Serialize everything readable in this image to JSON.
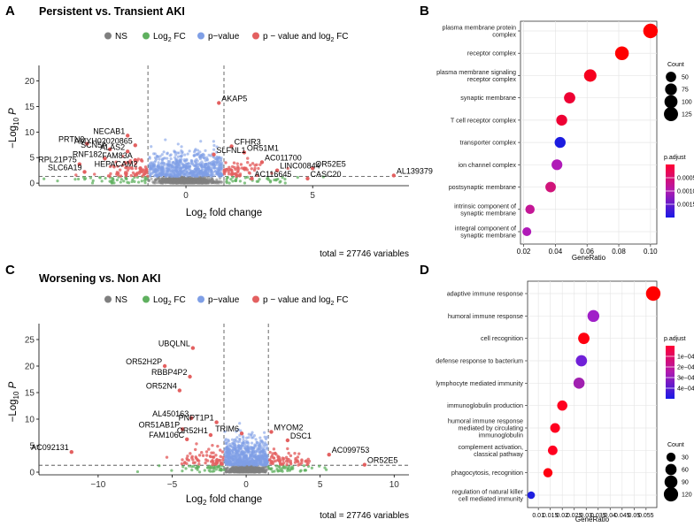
{
  "panels": [
    {
      "letter": "A",
      "title": "Persistent vs. Transient AKI",
      "legend": [
        {
          "label": "NS",
          "color": "#7f7f7f"
        },
        {
          "label": "Log",
          "sub": "2",
          "suffix": " FC",
          "color": "#5fb05f"
        },
        {
          "label": "p−value",
          "color": "#7f9fe6"
        },
        {
          "label": "p − value and log",
          "sub": "2",
          "suffix": " FC",
          "color": "#e36060"
        }
      ],
      "x_ticks": [
        0,
        5
      ],
      "y_ticks": [
        0,
        5,
        10,
        15,
        20
      ],
      "xlim": [
        -5.8,
        8.8
      ],
      "ylim": [
        -0.5,
        22
      ],
      "fc_cut": 1.5,
      "p_cut": 1.3,
      "xlabel_pre": "Log",
      "xlabel_sub": "2",
      "xlabel_post": " fold change",
      "ylabel_pre": "−Log",
      "ylabel_sub": "10",
      "ylabel_post": " P",
      "caption": "total = 27746 variables",
      "genes": [
        {
          "name": "AKAP5",
          "x": 1.3,
          "y": 15.7
        },
        {
          "name": "NECAB1",
          "x": -2.3,
          "y": 9.3
        },
        {
          "name": "PRTN3",
          "x": -3.9,
          "y": 7.7
        },
        {
          "name": "AMYH02020865",
          "x": -2.0,
          "y": 7.4
        },
        {
          "name": "CFHR3",
          "x": 1.8,
          "y": 7.2
        },
        {
          "name": "SCN5A",
          "x": -3.0,
          "y": 6.6
        },
        {
          "name": "ALAS2",
          "x": -2.3,
          "y": 6.2
        },
        {
          "name": "OR51M1",
          "x": 2.3,
          "y": 6.0
        },
        {
          "name": "SLFNL1",
          "x": 1.1,
          "y": 5.6
        },
        {
          "name": "RNF182",
          "x": -3.2,
          "y": 4.8
        },
        {
          "name": "FAM83A",
          "x": -2.0,
          "y": 4.5
        },
        {
          "name": "AC011700",
          "x": 3.0,
          "y": 4.1
        },
        {
          "name": "RPL21P75",
          "x": -4.2,
          "y": 3.7
        },
        {
          "name": "HEPACAM2",
          "x": -1.8,
          "y": 2.9
        },
        {
          "name": "OR52E5",
          "x": 5.0,
          "y": 2.9
        },
        {
          "name": "LINC00844",
          "x": 3.6,
          "y": 2.5
        },
        {
          "name": "SLC6A19",
          "x": -4.0,
          "y": 2.2
        },
        {
          "name": "AC116645",
          "x": 2.6,
          "y": 0.9
        },
        {
          "name": "CASC20",
          "x": 4.8,
          "y": 0.9
        },
        {
          "name": "AL139379",
          "x": 8.2,
          "y": 1.5
        }
      ]
    },
    {
      "letter": "C",
      "title": "Worsening vs. Non AKI",
      "legend": [
        {
          "label": "NS",
          "color": "#7f7f7f"
        },
        {
          "label": "Log",
          "sub": "2",
          "suffix": " FC",
          "color": "#5fb05f"
        },
        {
          "label": "p−value",
          "color": "#7f9fe6"
        },
        {
          "label": "p − value and log",
          "sub": "2",
          "suffix": " FC",
          "color": "#e36060"
        }
      ],
      "x_ticks": [
        -10,
        -5,
        0,
        5,
        10
      ],
      "y_ticks": [
        0,
        5,
        10,
        15,
        20,
        25
      ],
      "xlim": [
        -14,
        11
      ],
      "ylim": [
        -0.5,
        27
      ],
      "fc_cut": 1.5,
      "p_cut": 1.3,
      "xlabel_pre": "Log",
      "xlabel_sub": "2",
      "xlabel_post": " fold change",
      "ylabel_pre": "−Log",
      "ylabel_sub": "10",
      "ylabel_post": " P",
      "caption": "total = 27746 variables",
      "genes": [
        {
          "name": "UBQLNL",
          "x": -3.6,
          "y": 23.4
        },
        {
          "name": "OR52H2P",
          "x": -5.5,
          "y": 20.0
        },
        {
          "name": "RBBP4P2",
          "x": -3.8,
          "y": 18.0
        },
        {
          "name": "OR52N4",
          "x": -4.5,
          "y": 15.4
        },
        {
          "name": "AL450163",
          "x": -3.7,
          "y": 10.2
        },
        {
          "name": "PNPT1P1",
          "x": -2.0,
          "y": 9.4
        },
        {
          "name": "OR51AB1P",
          "x": -4.3,
          "y": 8.1
        },
        {
          "name": "MYOM2",
          "x": 1.7,
          "y": 7.6
        },
        {
          "name": "TRIM6",
          "x": -0.3,
          "y": 7.3
        },
        {
          "name": "OR52H1",
          "x": -2.4,
          "y": 7.0
        },
        {
          "name": "FAM106C",
          "x": -4.0,
          "y": 6.2
        },
        {
          "name": "DSC1",
          "x": 2.8,
          "y": 6.0
        },
        {
          "name": "AC099753",
          "x": 5.6,
          "y": 3.3
        },
        {
          "name": "AC092131",
          "x": -11.8,
          "y": 3.8
        },
        {
          "name": "OR52E5",
          "x": 8.0,
          "y": 1.4
        }
      ]
    }
  ],
  "dotplots": [
    {
      "letter": "B",
      "xlabel": "GeneRatio",
      "x_ticks": [
        0.02,
        0.04,
        0.06,
        0.08,
        0.1
      ],
      "x_tick_labels": [
        "0.02",
        "0.04",
        "0.06",
        "0.08",
        "0.10"
      ],
      "xlim": [
        0.018,
        0.104
      ],
      "terms": [
        {
          "label": [
            "plasma membrane protein",
            "complex"
          ],
          "ratio": 0.1,
          "count": 135,
          "color": "#ff0000"
        },
        {
          "label": [
            "receptor complex"
          ],
          "ratio": 0.082,
          "count": 115,
          "color": "#ff0000"
        },
        {
          "label": [
            "plasma membrane signaling",
            "receptor complex"
          ],
          "ratio": 0.062,
          "count": 88,
          "color": "#f6001e"
        },
        {
          "label": [
            "synaptic membrane"
          ],
          "ratio": 0.049,
          "count": 65,
          "color": "#ee0033"
        },
        {
          "label": [
            "T cell receptor complex"
          ],
          "ratio": 0.044,
          "count": 60,
          "color": "#ee0033"
        },
        {
          "label": [
            "transporter complex"
          ],
          "ratio": 0.043,
          "count": 60,
          "color": "#1c1ce0"
        },
        {
          "label": [
            "ion channel complex"
          ],
          "ratio": 0.041,
          "count": 57,
          "color": "#b01ab8"
        },
        {
          "label": [
            "postsynaptic membrane"
          ],
          "ratio": 0.037,
          "count": 52,
          "color": "#d0147a"
        },
        {
          "label": [
            "intrinsic component of",
            "synaptic membrane"
          ],
          "ratio": 0.024,
          "count": 35,
          "color": "#c41696"
        },
        {
          "label": [
            "integral component of",
            "synaptic membrane"
          ],
          "ratio": 0.022,
          "count": 30,
          "color": "#b01ab8"
        }
      ],
      "size_legend": {
        "title": "Count",
        "values": [
          50,
          75,
          100,
          125
        ]
      },
      "color_legend": {
        "title": "p.adjust",
        "ticks": [
          "0.0005",
          "0.0010",
          "0.0015"
        ]
      }
    },
    {
      "letter": "D",
      "xlabel": "GeneRatio",
      "x_ticks": [
        0.01,
        0.015,
        0.02,
        0.025,
        0.03,
        0.035,
        0.04,
        0.045,
        0.05,
        0.055
      ],
      "x_tick_labels": [
        "0.01",
        "0.015",
        "0.02",
        "0.025",
        "0.03",
        "0.035",
        "0.04",
        "0.045",
        "0.05",
        "0.055"
      ],
      "xlim": [
        0.0055,
        0.0595
      ],
      "terms": [
        {
          "label": [
            "adaptive immune response"
          ],
          "ratio": 0.058,
          "count": 125,
          "color": "#ff0000"
        },
        {
          "label": [
            "humoral immune response"
          ],
          "ratio": 0.033,
          "count": 70,
          "color": "#a020c8"
        },
        {
          "label": [
            "cell recognition"
          ],
          "ratio": 0.029,
          "count": 62,
          "color": "#ff0010"
        },
        {
          "label": [
            "defense response to bacterium"
          ],
          "ratio": 0.028,
          "count": 60,
          "color": "#7020d8"
        },
        {
          "label": [
            "lymphocyte mediated immunity"
          ],
          "ratio": 0.027,
          "count": 58,
          "color": "#a020b0"
        },
        {
          "label": [
            "immunoglobulin production"
          ],
          "ratio": 0.02,
          "count": 44,
          "color": "#ff0020"
        },
        {
          "label": [
            "humoral immune response",
            "mediated by circulating",
            "immunoglobulin"
          ],
          "ratio": 0.017,
          "count": 38,
          "color": "#ff0020"
        },
        {
          "label": [
            "complement activation,",
            "classical pathway"
          ],
          "ratio": 0.016,
          "count": 36,
          "color": "#ff0020"
        },
        {
          "label": [
            "phagocytosis, recognition"
          ],
          "ratio": 0.014,
          "count": 32,
          "color": "#ff0010"
        },
        {
          "label": [
            "regulation of natural killer",
            "cell mediated immunity"
          ],
          "ratio": 0.007,
          "count": 15,
          "color": "#2020e0"
        }
      ],
      "size_legend": {
        "title": "Count",
        "values": [
          30,
          60,
          90,
          120
        ]
      },
      "color_legend": {
        "title": "p.adjust",
        "ticks": [
          "1e−04",
          "2e−04",
          "3e−04",
          "4e−04"
        ]
      }
    }
  ],
  "chart_data": [
    {
      "type": "scatter",
      "title": "Persistent vs. Transient AKI",
      "xlabel": "Log2 fold change",
      "ylabel": "−Log10 P",
      "xlim": [
        -5.8,
        8.8
      ],
      "ylim": [
        -0.5,
        22
      ],
      "thresholds": {
        "log2fc": 1.5,
        "neg_log10_p": 1.3
      },
      "legend": [
        "NS",
        "Log2 FC",
        "p−value",
        "p − value and log2 FC"
      ],
      "labeled_points": [
        "AKAP5",
        "NECAB1",
        "PRTN3",
        "AMYH02020865",
        "CFHR3",
        "SCN5A",
        "ALAS2",
        "OR51M1",
        "SLFNL1",
        "RNF182",
        "FAM83A",
        "AC011700",
        "RPL21P75",
        "HEPACAM2",
        "OR52E5",
        "LINC00844",
        "SLC6A19",
        "AC116645",
        "CASC20",
        "AL139379"
      ],
      "total": 27746
    },
    {
      "type": "scatter",
      "title": "Worsening vs. Non AKI",
      "xlabel": "Log2 fold change",
      "ylabel": "−Log10 P",
      "xlim": [
        -14,
        11
      ],
      "ylim": [
        -0.5,
        27
      ],
      "thresholds": {
        "log2fc": 1.5,
        "neg_log10_p": 1.3
      },
      "legend": [
        "NS",
        "Log2 FC",
        "p−value",
        "p − value and log2 FC"
      ],
      "labeled_points": [
        "UBQLNL",
        "OR52H2P",
        "RBBP4P2",
        "OR52N4",
        "AL450163",
        "PNPT1P1",
        "OR51AB1P",
        "MYOM2",
        "TRIM6",
        "OR52H1",
        "FAM106C",
        "DSC1",
        "AC099753",
        "AC092131",
        "OR52E5"
      ],
      "total": 27746
    },
    {
      "type": "scatter",
      "subtype": "dotplot",
      "panel": "B",
      "xlabel": "GeneRatio",
      "categories": [
        "plasma membrane protein complex",
        "receptor complex",
        "plasma membrane signaling receptor complex",
        "synaptic membrane",
        "T cell receptor complex",
        "transporter complex",
        "ion channel complex",
        "postsynaptic membrane",
        "intrinsic component of synaptic membrane",
        "integral component of synaptic membrane"
      ],
      "values": [
        0.1,
        0.082,
        0.062,
        0.049,
        0.044,
        0.043,
        0.041,
        0.037,
        0.024,
        0.022
      ]
    },
    {
      "type": "scatter",
      "subtype": "dotplot",
      "panel": "D",
      "xlabel": "GeneRatio",
      "categories": [
        "adaptive immune response",
        "humoral immune response",
        "cell recognition",
        "defense response to bacterium",
        "lymphocyte mediated immunity",
        "immunoglobulin production",
        "humoral immune response mediated by circulating immunoglobulin",
        "complement activation, classical pathway",
        "phagocytosis, recognition",
        "regulation of natural killer cell mediated immunity"
      ],
      "values": [
        0.058,
        0.033,
        0.029,
        0.028,
        0.027,
        0.02,
        0.017,
        0.016,
        0.014,
        0.007
      ]
    }
  ]
}
